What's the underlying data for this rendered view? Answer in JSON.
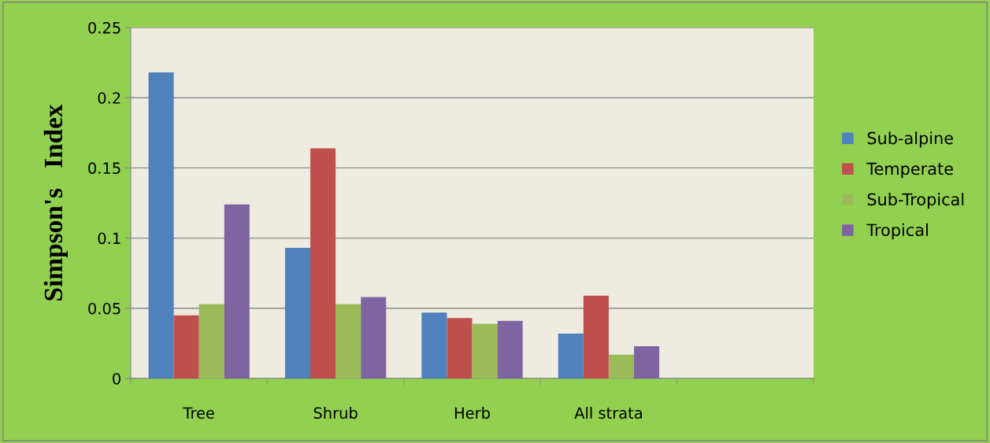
{
  "chart_data": {
    "type": "bar",
    "ylabel": "Simpson's   Index",
    "categories": [
      "Tree",
      "Shrub",
      "Herb",
      "All strata",
      null
    ],
    "series": [
      {
        "name": "Sub-alpine",
        "color": "#4f81bd",
        "values": [
          0.218,
          0.093,
          0.047,
          0.032,
          null
        ]
      },
      {
        "name": "Temperate",
        "color": "#c0504d",
        "values": [
          0.045,
          0.164,
          0.043,
          0.059,
          null
        ]
      },
      {
        "name": "Sub-Tropical",
        "color": "#9bbb59",
        "values": [
          0.053,
          0.053,
          0.039,
          0.017,
          null
        ]
      },
      {
        "name": "Tropical",
        "color": "#8064a2",
        "values": [
          0.124,
          0.058,
          0.041,
          0.023,
          null
        ]
      }
    ],
    "ylim": [
      0,
      0.25
    ],
    "yticks": [
      0,
      0.05,
      0.1,
      0.15,
      0.2,
      0.25
    ],
    "grid": "y",
    "legend": "right"
  }
}
